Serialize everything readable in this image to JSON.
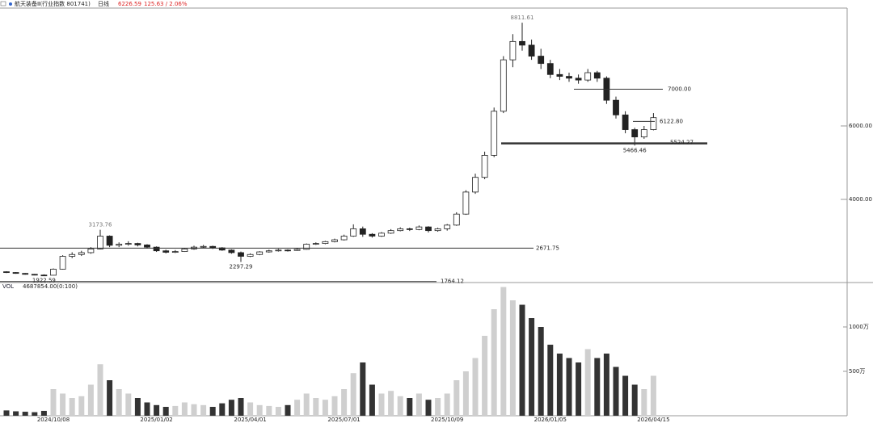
{
  "chart_data": {
    "type": "candlestick",
    "title": "航天装备Ⅱ(行业指数 801741)",
    "period": "日线",
    "change": "125.63 / 2.06%",
    "categories": [
      null,
      null,
      null,
      null,
      null,
      "2024/10/08",
      null,
      null,
      null,
      null,
      null,
      null,
      null,
      null,
      null,
      null,
      "2025/01/02",
      null,
      null,
      null,
      null,
      null,
      null,
      null,
      null,
      null,
      "2025/04/01",
      null,
      null,
      null,
      null,
      null,
      null,
      null,
      null,
      null,
      "2025/07/01",
      null,
      null,
      null,
      null,
      null,
      null,
      null,
      null,
      null,
      null,
      "2025/10/09",
      null,
      null,
      null,
      null,
      null,
      null,
      null,
      null,
      null,
      null,
      "2026/01/05",
      null,
      null,
      null,
      null,
      null,
      null,
      null,
      null,
      null,
      null,
      "2026/04/15"
    ],
    "open": [
      2030,
      2010,
      1985,
      1960,
      1940,
      1935,
      2100,
      2450,
      2500,
      2550,
      2650,
      3000,
      2750,
      2780,
      2800,
      2760,
      2700,
      2600,
      2560,
      2580,
      2650,
      2700,
      2720,
      2680,
      2620,
      2550,
      2450,
      2500,
      2570,
      2600,
      2620,
      2610,
      2640,
      2780,
      2800,
      2850,
      2900,
      3000,
      3200,
      3050,
      3000,
      3080,
      3150,
      3200,
      3180,
      3250,
      3150,
      3200,
      3300,
      3600,
      4200,
      4600,
      5200,
      6400,
      7800,
      8300,
      8200,
      7900,
      7700,
      7400,
      7350,
      7300,
      7250,
      7450,
      7300,
      6700,
      6300,
      5900,
      5700,
      5900
    ],
    "high": [
      2045,
      2020,
      1995,
      1970,
      1960,
      2120,
      2480,
      2560,
      2600,
      2700,
      3173.76,
      3020,
      2830,
      2860,
      2820,
      2780,
      2720,
      2630,
      2620,
      2680,
      2740,
      2760,
      2740,
      2700,
      2640,
      2580,
      2530,
      2590,
      2630,
      2650,
      2640,
      2670,
      2800,
      2830,
      2870,
      2930,
      3040,
      3320,
      3260,
      3080,
      3110,
      3190,
      3240,
      3230,
      3290,
      3270,
      3230,
      3330,
      3650,
      4250,
      4700,
      5300,
      6500,
      7900,
      8500,
      8811.61,
      8350,
      8100,
      7800,
      7550,
      7450,
      7400,
      7550,
      7500,
      7350,
      6800,
      6400,
      5950,
      6000,
      6350
    ],
    "low": [
      1995,
      1975,
      1950,
      1932,
      1922.59,
      1930,
      2090,
      2400,
      2460,
      2520,
      2640,
      2700,
      2700,
      2740,
      2720,
      2660,
      2570,
      2530,
      2540,
      2570,
      2630,
      2680,
      2650,
      2600,
      2520,
      2297.29,
      2430,
      2480,
      2550,
      2580,
      2580,
      2600,
      2630,
      2760,
      2780,
      2830,
      2880,
      2980,
      2980,
      2960,
      2980,
      3060,
      3130,
      3140,
      3160,
      3100,
      3120,
      3150,
      3280,
      3580,
      4150,
      4550,
      5150,
      6350,
      7600,
      8050,
      7800,
      7550,
      7300,
      7250,
      7200,
      7150,
      7200,
      7200,
      6600,
      6200,
      5800,
      5466.46,
      5650,
      5880
    ],
    "close": [
      2010,
      1985,
      1960,
      1940,
      1935,
      2100,
      2450,
      2500,
      2550,
      2650,
      3000,
      2750,
      2780,
      2800,
      2760,
      2700,
      2600,
      2560,
      2580,
      2650,
      2700,
      2720,
      2680,
      2620,
      2550,
      2450,
      2500,
      2570,
      2600,
      2620,
      2610,
      2640,
      2780,
      2800,
      2850,
      2900,
      3000,
      3200,
      3050,
      3000,
      3080,
      3150,
      3200,
      3180,
      3250,
      3150,
      3200,
      3300,
      3600,
      4200,
      4600,
      5200,
      6400,
      7800,
      8300,
      8200,
      7900,
      7700,
      7400,
      7350,
      7300,
      7250,
      7450,
      7300,
      6700,
      6300,
      5900,
      5700,
      5900,
      6226.59
    ],
    "up_color": "#ffffff",
    "down_color": "#222222",
    "ylim": [
      1736,
      9209
    ],
    "yticks": [
      {
        "value": 6000,
        "label": "6000.00"
      },
      {
        "value": 4000,
        "label": "4000.00"
      }
    ],
    "levels": [
      {
        "value": 7000,
        "label": "7000.00"
      },
      {
        "value": 6122.8,
        "label": "6122.80"
      },
      {
        "value": 5524.27,
        "label": "5524.27"
      },
      {
        "value": 2671.75,
        "label": "2671.75"
      },
      {
        "value": 1764.12,
        "label": "1764.12"
      }
    ],
    "high_marked": [
      10,
      55
    ],
    "low_marked": [
      4,
      25,
      67
    ],
    "volume": {
      "label": "VOL",
      "info": "4687854.00(0:100)",
      "values": [
        60,
        50,
        45,
        40,
        55,
        300,
        250,
        200,
        220,
        350,
        580,
        400,
        300,
        250,
        200,
        150,
        120,
        100,
        110,
        150,
        130,
        120,
        100,
        140,
        180,
        200,
        150,
        120,
        110,
        100,
        120,
        180,
        250,
        200,
        180,
        220,
        300,
        480,
        600,
        350,
        250,
        280,
        220,
        200,
        250,
        180,
        200,
        250,
        400,
        500,
        650,
        900,
        1200,
        1450,
        1300,
        1250,
        1100,
        1000,
        800,
        700,
        650,
        600,
        750,
        650,
        700,
        550,
        450,
        350,
        300,
        450
      ],
      "ylim": [
        0,
        1482
      ],
      "yticks": [
        {
          "value": 1000,
          "label": "1000万"
        },
        {
          "value": 500,
          "label": "500万"
        }
      ],
      "up_color": "#cfcfcf",
      "down_color": "#333333"
    }
  }
}
